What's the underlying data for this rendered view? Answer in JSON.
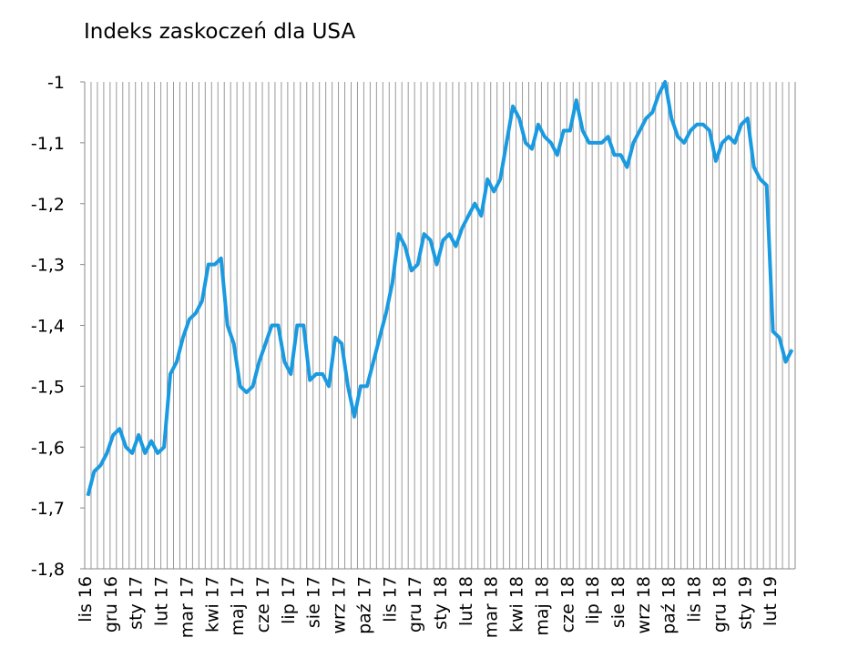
{
  "chart_data": {
    "type": "line",
    "title": "Indeks zaskoczeń dla USA",
    "categories": [
      "lis 16",
      null,
      null,
      null,
      "gru 16",
      null,
      null,
      null,
      "sty 17",
      null,
      null,
      null,
      "lut 17",
      null,
      null,
      null,
      "mar 17",
      null,
      null,
      null,
      "kwi 17",
      null,
      null,
      null,
      "maj 17",
      null,
      null,
      null,
      "cze 17",
      null,
      null,
      null,
      "lip 17",
      null,
      null,
      null,
      "sie 17",
      null,
      null,
      null,
      "wrz 17",
      null,
      null,
      null,
      "paź 17",
      null,
      null,
      null,
      "lis 17",
      null,
      null,
      null,
      "gru 17",
      null,
      null,
      null,
      "sty 18",
      null,
      null,
      null,
      "lut 18",
      null,
      null,
      null,
      "mar 18",
      null,
      null,
      null,
      "kwi 18",
      null,
      null,
      null,
      "maj 18",
      null,
      null,
      null,
      "cze 18",
      null,
      null,
      null,
      "lip 18",
      null,
      null,
      null,
      "sie 18",
      null,
      null,
      null,
      "wrz 18",
      null,
      null,
      null,
      "paź 18",
      null,
      null,
      null,
      "lis 18",
      null,
      null,
      null,
      "gru 18",
      null,
      null,
      null,
      "sty 19",
      null,
      null,
      null,
      "lut 19",
      null,
      null,
      null
    ],
    "series": [
      {
        "color": "#1a9ae0",
        "values": [
          -1.68,
          -1.64,
          -1.63,
          -1.61,
          -1.58,
          -1.57,
          -1.6,
          -1.61,
          -1.58,
          -1.61,
          -1.59,
          -1.61,
          -1.6,
          -1.48,
          -1.46,
          -1.42,
          -1.39,
          -1.38,
          -1.36,
          -1.3,
          -1.3,
          -1.29,
          -1.4,
          -1.43,
          -1.5,
          -1.51,
          -1.5,
          -1.46,
          -1.43,
          -1.4,
          -1.4,
          -1.46,
          -1.48,
          -1.4,
          -1.4,
          -1.49,
          -1.48,
          -1.48,
          -1.5,
          -1.42,
          -1.43,
          -1.5,
          -1.55,
          -1.5,
          -1.5,
          -1.46,
          -1.42,
          -1.38,
          -1.33,
          -1.25,
          -1.27,
          -1.31,
          -1.3,
          -1.25,
          -1.26,
          -1.3,
          -1.26,
          -1.25,
          -1.27,
          -1.24,
          -1.22,
          -1.2,
          -1.22,
          -1.16,
          -1.18,
          -1.16,
          -1.1,
          -1.04,
          -1.06,
          -1.1,
          -1.11,
          -1.07,
          -1.09,
          -1.1,
          -1.12,
          -1.08,
          -1.08,
          -1.03,
          -1.08,
          -1.1,
          -1.1,
          -1.1,
          -1.09,
          -1.12,
          -1.12,
          -1.14,
          -1.1,
          -1.08,
          -1.06,
          -1.05,
          -1.02,
          -1.0,
          -1.06,
          -1.09,
          -1.1,
          -1.08,
          -1.07,
          -1.07,
          -1.08,
          -1.13,
          -1.1,
          -1.09,
          -1.1,
          -1.07,
          -1.06,
          -1.14,
          -1.16,
          -1.17,
          -1.41,
          -1.42,
          -1.46,
          -1.44
        ]
      }
    ],
    "ylim": [
      -1.8,
      -1
    ],
    "yticks": [
      {
        "value": -1.8,
        "label": "-1,8"
      },
      {
        "value": -1.7,
        "label": "-1,7"
      },
      {
        "value": -1.6,
        "label": "-1,6"
      },
      {
        "value": -1.5,
        "label": "-1,5"
      },
      {
        "value": -1.4,
        "label": "-1,4"
      },
      {
        "value": -1.3,
        "label": "-1,3"
      },
      {
        "value": -1.2,
        "label": "-1,2"
      },
      {
        "value": -1.1,
        "label": "-1,1"
      },
      {
        "value": -1,
        "label": "-1"
      }
    ],
    "grid": true
  }
}
